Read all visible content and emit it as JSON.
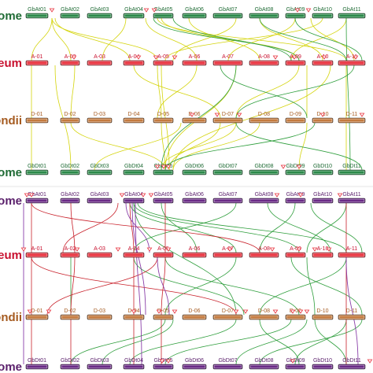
{
  "panels": [
    {
      "id": "top",
      "tracks": [
        {
          "label": "ome",
          "label_color": "#1f6b35",
          "fill": "#2b8a4a",
          "chromosomes": [
            "GbAt01",
            "GbAt02",
            "GbAt03",
            "GbAt04",
            "GbAt05",
            "GbAt06",
            "GbAt07",
            "GbAt08",
            "GbAt09",
            "GbAt10",
            "GbAt11"
          ]
        },
        {
          "label": "reum",
          "label_color": "#c8102e",
          "fill": "#e8323e",
          "chromosomes": [
            "A-01",
            "A-02",
            "A-03",
            "A-04",
            "A-05",
            "A-06",
            "A-07",
            "A-08",
            "A-09",
            "A-10",
            "A-11"
          ]
        },
        {
          "label": "ondii",
          "label_color": "#a55a1f",
          "fill": "#c47a3e",
          "chromosomes": [
            "D-01",
            "D-02",
            "D-03",
            "D-04",
            "D-05",
            "D-06",
            "D-07",
            "D-08",
            "D-09",
            "D-10",
            "D-11"
          ]
        },
        {
          "label": "ome",
          "label_color": "#1f6b35",
          "fill": "#2b8a4a",
          "chromosomes": [
            "GbDt01",
            "GbDt02",
            "GbDt03",
            "GbDt04",
            "GbDt05",
            "GbDt06",
            "GbDt07",
            "GbDt08",
            "GbDt09",
            "GbDt10",
            "GbDt11"
          ]
        }
      ]
    },
    {
      "id": "bottom",
      "tracks": [
        {
          "label": "ome",
          "label_color": "#5a1f6b",
          "fill": "#6a2a86",
          "chromosomes": [
            "GbAt01",
            "GbAt02",
            "GbAt03",
            "GbAt04",
            "GbAt05",
            "GbAt06",
            "GbAt07",
            "GbAt08",
            "GbAt09",
            "GbAt10",
            "GbAt11"
          ]
        },
        {
          "label": "reum",
          "label_color": "#c8102e",
          "fill": "#e8323e",
          "chromosomes": [
            "A-01",
            "A-02",
            "A-03",
            "A-04",
            "A-05",
            "A-06",
            "A-07",
            "A-08",
            "A-09",
            "A-10",
            "A-11"
          ]
        },
        {
          "label": "ondii",
          "label_color": "#a55a1f",
          "fill": "#c47a3e",
          "chromosomes": [
            "D-01",
            "D-02",
            "D-03",
            "D-04",
            "D-05",
            "D-06",
            "D-07",
            "D-08",
            "D-09",
            "D-10",
            "D-11"
          ]
        },
        {
          "label": "ome",
          "label_color": "#5a1f6b",
          "fill": "#6a2a86",
          "chromosomes": [
            "GbDt01",
            "GbDt02",
            "GbDt03",
            "GbDt04",
            "GbDt05",
            "GbDt06",
            "GbDt07",
            "GbDt08",
            "GbDt09",
            "GbDt10",
            "GbDt11"
          ]
        }
      ]
    }
  ],
  "link_colors": {
    "yellow": "#d4d40a",
    "green": "#2e9e3c",
    "red": "#c8202a",
    "purple": "#8a3fa8"
  },
  "marker_color": "#e8323e"
}
